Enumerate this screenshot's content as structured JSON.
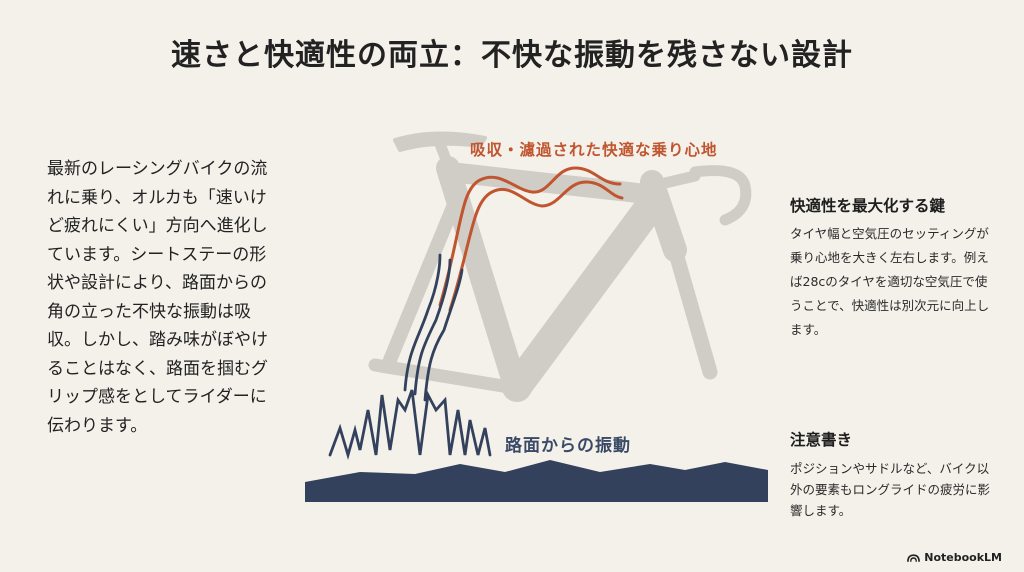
{
  "title": "速さと快適性の両立：不快な振動を残さない設計",
  "left_text": "最新のレーシングバイクの流れに乗り、オルカも「速いけど疲れにくい」方向へ進化しています。シートステーの形状や設計により、路面からの角の立った不快な振動は吸収。しかし、踏み味がぼやけることはなく、路面を掴むグリップ感をとしてライダーに伝わります。",
  "diagram": {
    "absorbed_label": "吸収・濾過された快適な乗り心地",
    "road_label": "路面からの振動",
    "colors": {
      "comfort": "#c0552f",
      "vibration": "#33415c",
      "road": "#33415c",
      "frame": "#cfcdc6"
    },
    "icons": [
      "bicycle-frame-icon"
    ]
  },
  "key_block": {
    "heading": "快適性を最大化する鍵",
    "body": "タイヤ幅と空気圧のセッティングが乗り心地を大きく左右します。例えば28cのタイヤを適切な空気圧で使うことで、快適性は別次元に向上します。"
  },
  "note_block": {
    "heading": "注意書き",
    "body": "ポジションやサドルなど、バイク以外の要素もロングライドの疲労に影響します。"
  },
  "footer": {
    "brand": "NotebookLM",
    "icon": "notebooklm-logo-icon"
  }
}
